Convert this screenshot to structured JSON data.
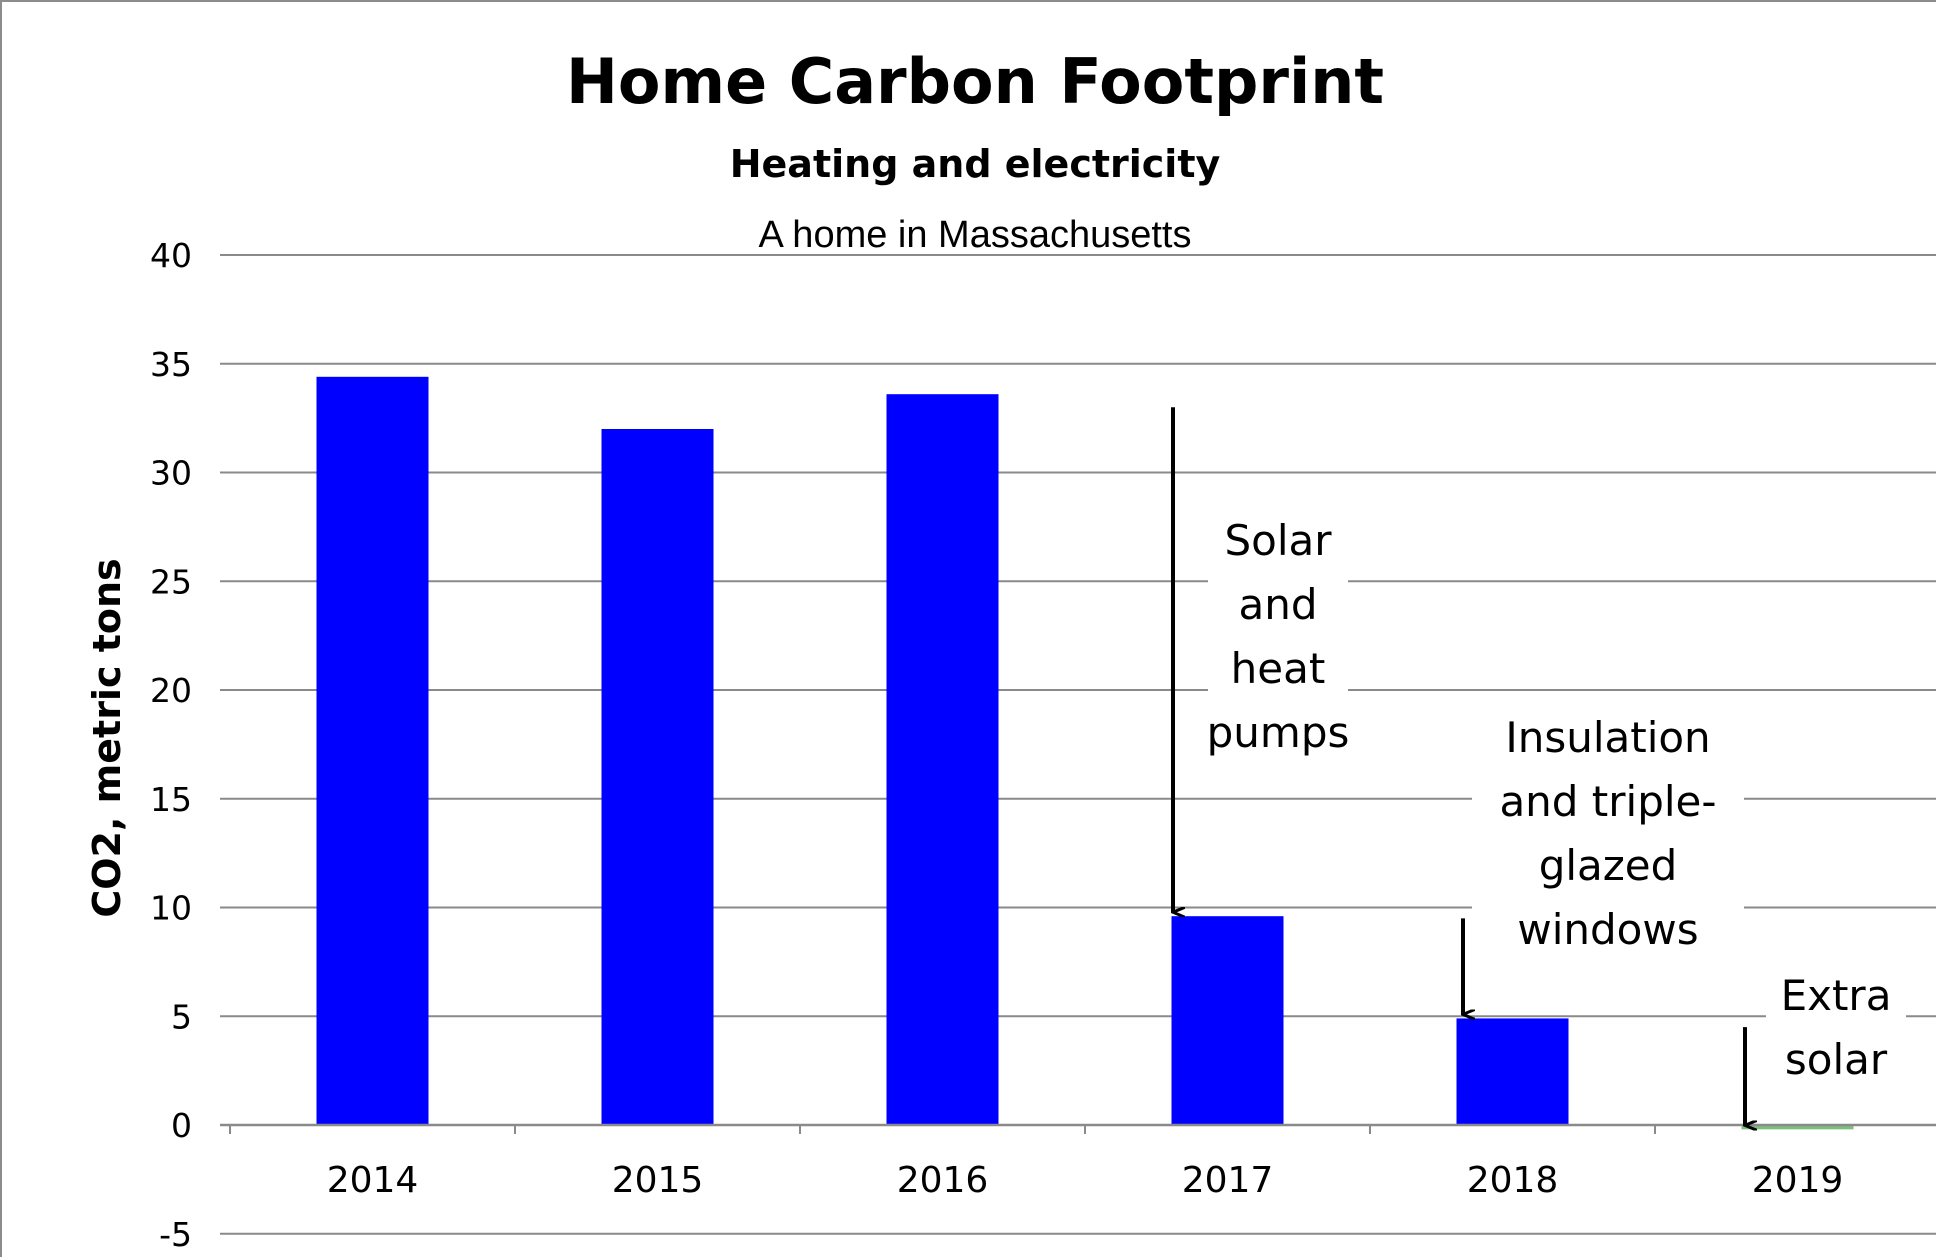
{
  "chart_data": {
    "type": "bar",
    "title": "Home Carbon Footprint",
    "subtitle": "Heating and electricity",
    "caption": "A home in Massachusetts",
    "ylabel": "CO2, metric tons",
    "xlabel": "",
    "categories": [
      "2014",
      "2015",
      "2016",
      "2017",
      "2018",
      "2019"
    ],
    "values": [
      34.4,
      32.0,
      33.6,
      9.6,
      4.9,
      -0.2
    ],
    "ylim": [
      -5,
      40
    ],
    "yticks": [
      -5,
      0,
      5,
      10,
      15,
      20,
      25,
      30,
      35,
      40
    ],
    "grid": true,
    "bar_colors": [
      "#0000ff",
      "#0000ff",
      "#0000ff",
      "#0000ff",
      "#0000ff",
      "#7cbf7c"
    ],
    "annotations": [
      {
        "lines": [
          "Solar",
          "and",
          "heat",
          "pumps"
        ],
        "category": "2017",
        "arrow_from": 33.0,
        "arrow_to": 9.6
      },
      {
        "lines": [
          "Insulation",
          "and triple-",
          "glazed",
          "windows"
        ],
        "category": "2018",
        "arrow_from": 9.5,
        "arrow_to": 4.9
      },
      {
        "lines": [
          "Extra",
          "solar"
        ],
        "category": "2019",
        "arrow_from": 4.5,
        "arrow_to": -0.2
      }
    ]
  }
}
